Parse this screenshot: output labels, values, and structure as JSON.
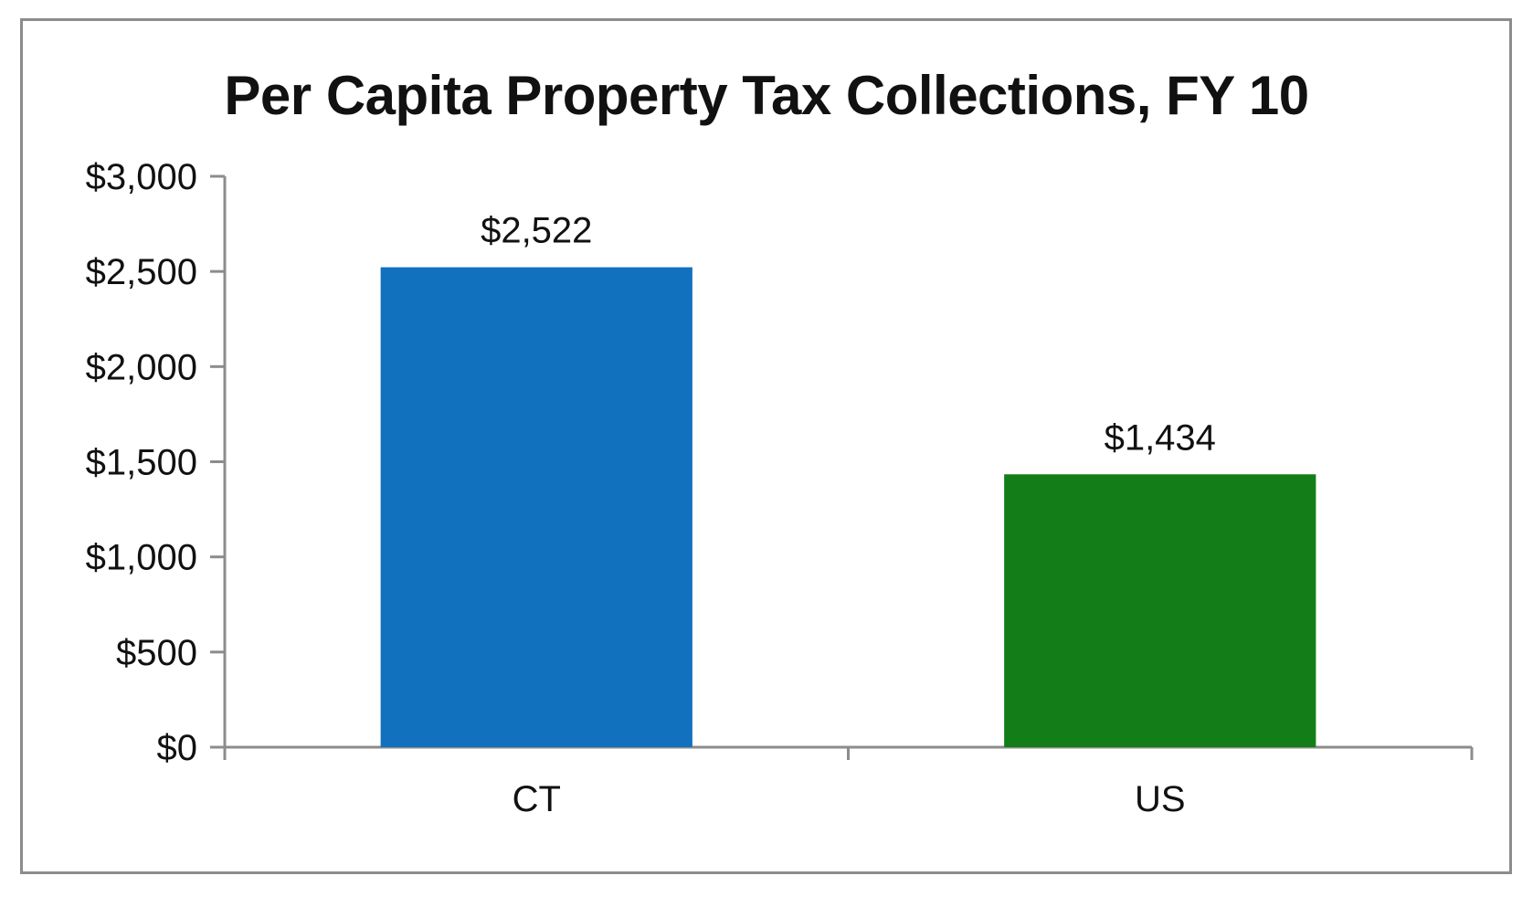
{
  "chart_data": {
    "type": "bar",
    "title": "Per Capita Property Tax Collections, FY 10",
    "xlabel": "",
    "ylabel": "",
    "categories": [
      "CT",
      "US"
    ],
    "values": [
      2522,
      1434
    ],
    "data_labels": [
      "$2,522",
      "$1,434"
    ],
    "bar_colors": [
      "#1271bf",
      "#137e17"
    ],
    "ylim": [
      0,
      3000
    ],
    "yticks": [
      0,
      500,
      1000,
      1500,
      2000,
      2500,
      3000
    ],
    "ytick_labels": [
      "$0",
      "$500",
      "$1,000",
      "$1,500",
      "$2,000",
      "$2,500",
      "$3,000"
    ],
    "grid": false,
    "legend": "none"
  }
}
